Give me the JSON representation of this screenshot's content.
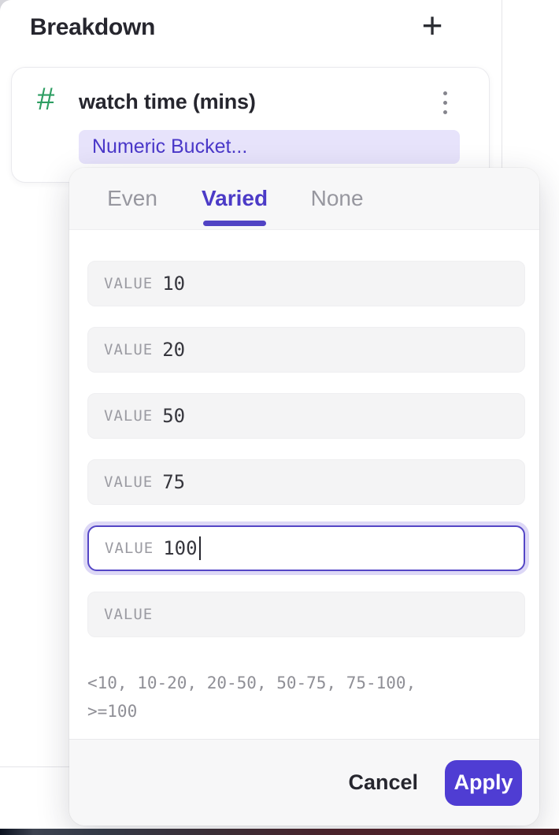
{
  "colors": {
    "accent_purple": "#4c3bc7",
    "apply_button_bg": "#4f3dd3",
    "pill_bg": "#e7e3fb",
    "pill_text": "#4a38c9",
    "numeric_type_green": "#2e9e63",
    "focus_ring": "#ddd8f6"
  },
  "breakdown": {
    "title": "Breakdown",
    "add_button": "+",
    "card": {
      "type_icon": "#",
      "property_name": "watch time (mins)",
      "bucket_selector": "Numeric Bucket..."
    }
  },
  "popup": {
    "tabs": [
      {
        "label": "Even"
      },
      {
        "label": "Varied"
      },
      {
        "label": "None"
      }
    ],
    "selected_tab": "Varied",
    "rows": [
      {
        "label": "VALUE",
        "value": "10"
      },
      {
        "label": "VALUE",
        "value": "20"
      },
      {
        "label": "VALUE",
        "value": "50"
      },
      {
        "label": "VALUE",
        "value": "75"
      },
      {
        "label": "VALUE",
        "value": "100"
      },
      {
        "label": "VALUE",
        "value": ""
      }
    ],
    "preview_lines": [
      "<10, 10-20, 20-50, 50-75, 75-100,",
      ">=100"
    ],
    "cancel_label": "Cancel",
    "apply_label": "Apply"
  }
}
